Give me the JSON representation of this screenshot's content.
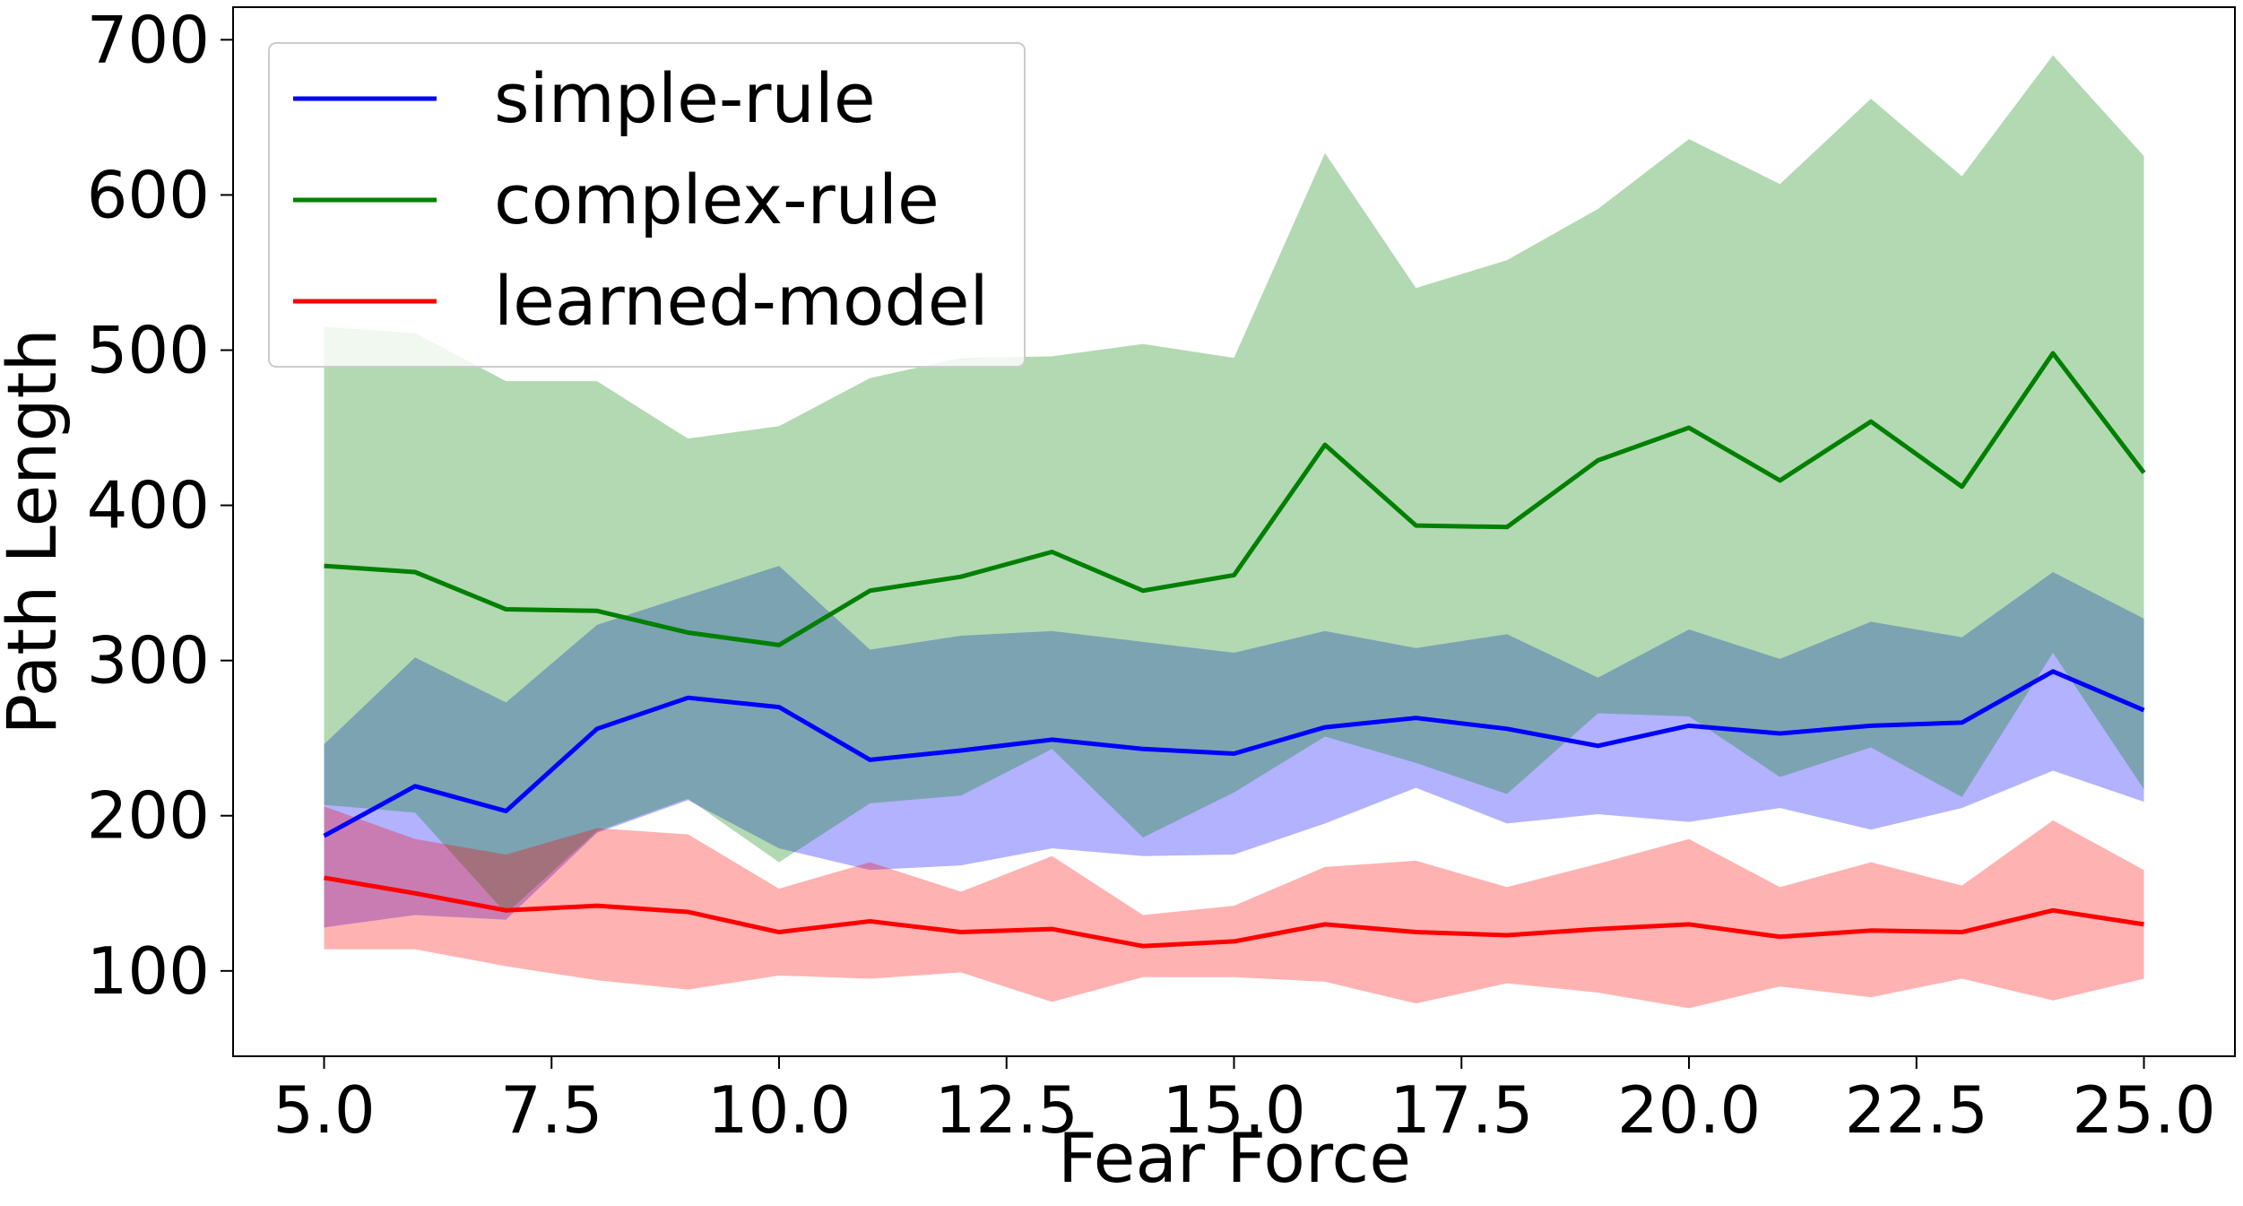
{
  "chart_data": {
    "type": "line",
    "xlabel": "Fear Force",
    "ylabel": "Path Length",
    "x": [
      5,
      6,
      7,
      8,
      9,
      10,
      11,
      12,
      13,
      14,
      15,
      16,
      17,
      18,
      19,
      20,
      21,
      22,
      23,
      24,
      25
    ],
    "series": [
      {
        "name": "simple-rule",
        "color": "#0000ff",
        "values": [
          187,
          219,
          203,
          256,
          276,
          270,
          236,
          242,
          249,
          243,
          240,
          257,
          263,
          256,
          245,
          258,
          253,
          258,
          260,
          293,
          268
        ],
        "upper": [
          246,
          302,
          273,
          323,
          342,
          361,
          307,
          316,
          319,
          312,
          305,
          319,
          308,
          317,
          289,
          320,
          301,
          325,
          315,
          357,
          327
        ],
        "lower": [
          128,
          136,
          133,
          189,
          210,
          179,
          165,
          168,
          179,
          174,
          175,
          195,
          218,
          195,
          201,
          196,
          205,
          191,
          205,
          229,
          209
        ]
      },
      {
        "name": "complex-rule",
        "color": "#008000",
        "values": [
          361,
          357,
          333,
          332,
          318,
          310,
          345,
          354,
          370,
          345,
          355,
          439,
          387,
          386,
          429,
          450,
          416,
          454,
          412,
          498,
          421
        ],
        "upper": [
          515,
          511,
          480,
          480,
          443,
          451,
          482,
          495,
          496,
          504,
          495,
          627,
          540,
          558,
          591,
          636,
          607,
          662,
          612,
          690,
          625
        ],
        "lower": [
          207,
          202,
          137,
          190,
          211,
          170,
          208,
          213,
          243,
          186,
          215,
          251,
          234,
          214,
          266,
          264,
          225,
          244,
          212,
          305,
          217
        ]
      },
      {
        "name": "learned-model",
        "color": "#ff0000",
        "values": [
          160,
          150,
          139,
          142,
          138,
          125,
          132,
          125,
          127,
          116,
          119,
          130,
          125,
          123,
          127,
          130,
          122,
          126,
          125,
          139,
          130
        ],
        "upper": [
          206,
          185,
          175,
          192,
          188,
          153,
          170,
          151,
          174,
          136,
          142,
          167,
          171,
          154,
          169,
          185,
          154,
          170,
          155,
          197,
          165
        ],
        "lower": [
          114,
          114,
          103,
          94,
          88,
          97,
          95,
          99,
          80,
          96,
          96,
          93,
          79,
          92,
          86,
          76,
          90,
          83,
          95,
          81,
          95
        ]
      }
    ],
    "band_opacity": 0.3,
    "xlim": [
      4,
      26
    ],
    "ylim": [
      45,
      721
    ],
    "xticks": [
      {
        "value": 5,
        "label": "5.0"
      },
      7.5,
      {
        "value": 10,
        "label": "10.0"
      },
      12.5,
      {
        "value": 15,
        "label": "15.0"
      },
      17.5,
      {
        "value": 20,
        "label": "20.0"
      },
      22.5,
      {
        "value": 25,
        "label": "25.0"
      }
    ],
    "yticks": [
      100,
      200,
      300,
      400,
      500,
      600,
      700
    ],
    "legend": "upper left"
  }
}
